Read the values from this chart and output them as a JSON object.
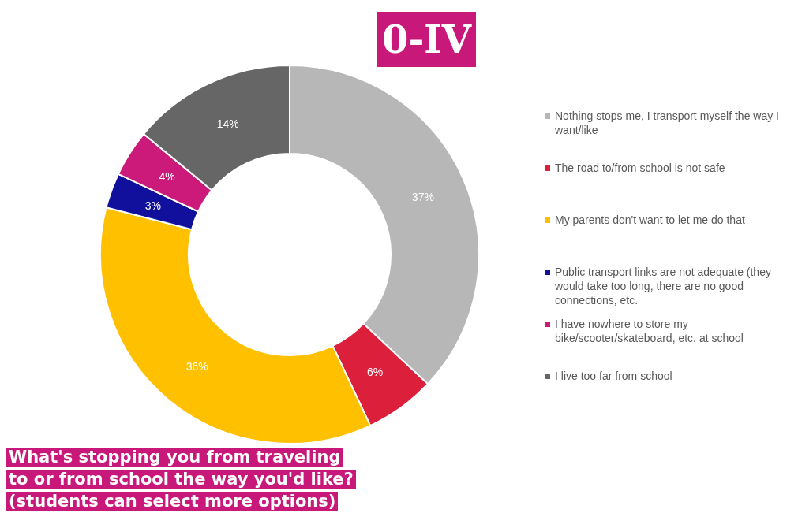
{
  "chart_data": {
    "type": "donut",
    "title": "0-IV",
    "subtitle": "What's stopping you from traveling to or from school the way you'd like? (students can select more options)",
    "categories": [
      "Nothing stops me, I transport myself the way I want/like",
      "The road to/from school is not safe",
      "My parents don't want to let me do that",
      "Public transport links are not adequate (they would take too long, there are no good connections, etc.",
      "I have nowhere to store my bike/scooter/skateboard, etc. at school",
      "I live too far from school"
    ],
    "values": [
      37,
      6,
      36,
      3,
      4,
      14
    ],
    "value_labels": [
      "37%",
      "6%",
      "36%",
      "3%",
      "4%",
      "14%"
    ],
    "colors": [
      "#b7b7b7",
      "#dc203c",
      "#ffc000",
      "#10109c",
      "#cc1a7a",
      "#666666"
    ],
    "legend": "right"
  }
}
